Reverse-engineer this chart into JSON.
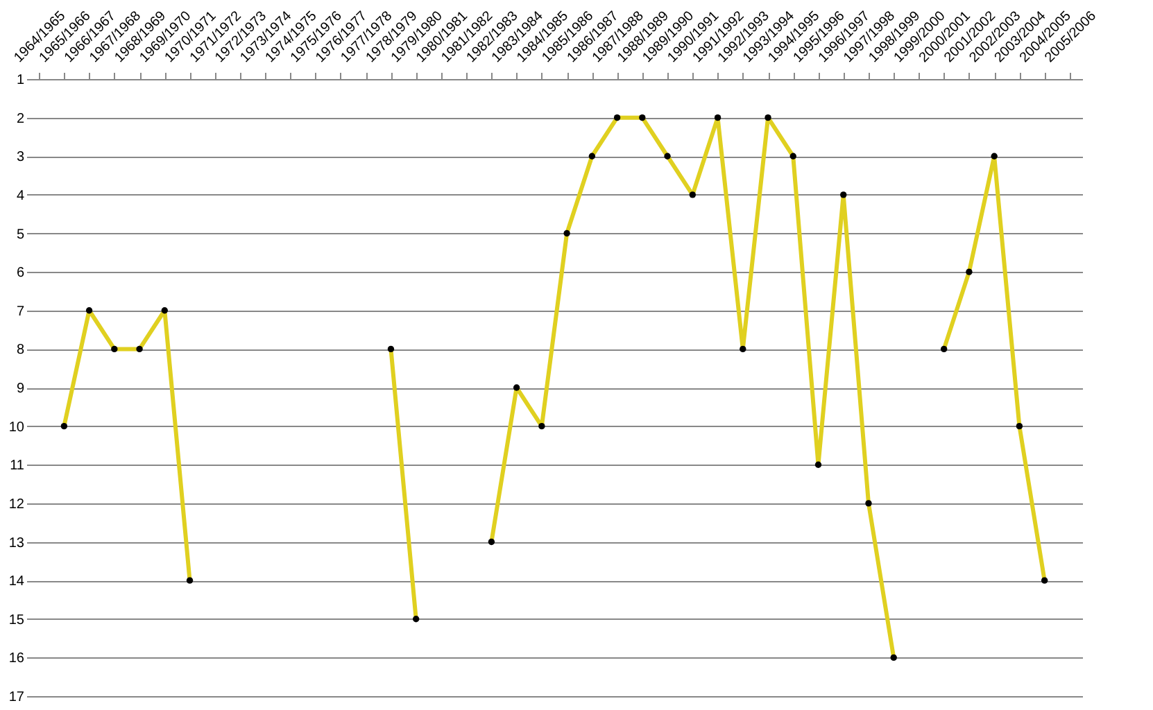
{
  "chart_data": {
    "type": "line",
    "categories": [
      "1964/1965",
      "1965/1966",
      "1966/1967",
      "1967/1968",
      "1968/1969",
      "1969/1970",
      "1970/1971",
      "1971/1972",
      "1972/1973",
      "1973/1974",
      "1974/1975",
      "1975/1976",
      "1976/1977",
      "1977/1978",
      "1978/1979",
      "1979/1980",
      "1980/1981",
      "1981/1982",
      "1982/1983",
      "1983/1984",
      "1984/1985",
      "1985/1986",
      "1986/1987",
      "1987/1988",
      "1988/1989",
      "1989/1990",
      "1990/1991",
      "1991/1992",
      "1992/1993",
      "1993/1994",
      "1994/1995",
      "1995/1996",
      "1996/1997",
      "1997/1998",
      "1998/1999",
      "1999/2000",
      "2000/2001",
      "2001/2002",
      "2002/2003",
      "2003/2004",
      "2004/2005",
      "2005/2006"
    ],
    "series": [
      {
        "color": "#e0d020",
        "values": [
          null,
          10,
          7,
          8,
          8,
          7,
          14,
          null,
          null,
          null,
          null,
          null,
          null,
          null,
          8,
          15,
          null,
          null,
          13,
          9,
          10,
          5,
          3,
          2,
          2,
          3,
          4,
          2,
          8,
          2,
          3,
          11,
          4,
          12,
          16,
          null,
          8,
          6,
          3,
          10,
          14,
          null
        ]
      }
    ],
    "ylim": [
      17,
      1
    ],
    "yticks": [
      1,
      2,
      3,
      4,
      5,
      6,
      7,
      8,
      9,
      10,
      11,
      12,
      13,
      14,
      15,
      16,
      17
    ],
    "grid": "y",
    "marker": "circle"
  }
}
